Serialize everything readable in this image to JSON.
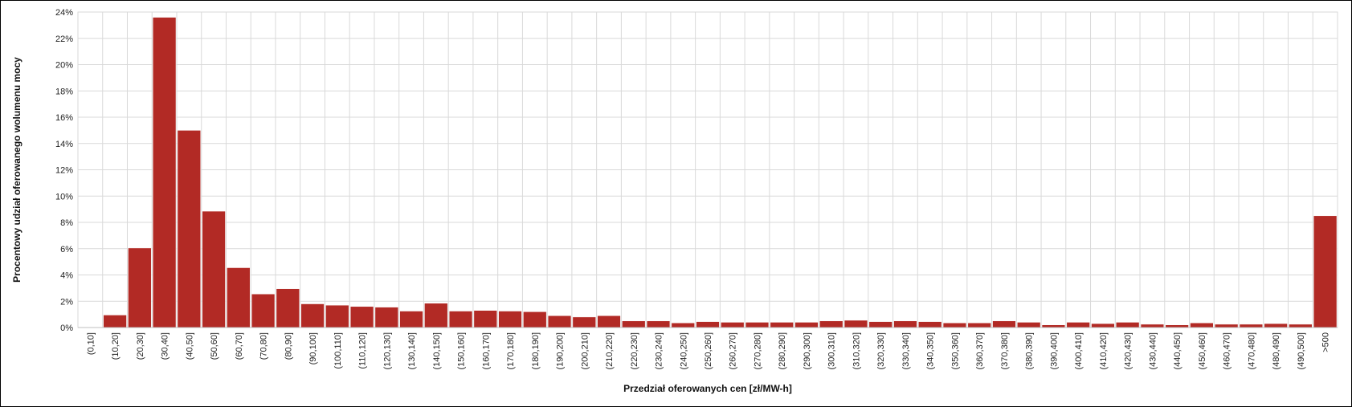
{
  "chart_data": {
    "type": "bar",
    "title": "",
    "xlabel": "Przedział oferowanych cen [zł/MW-h]",
    "ylabel": "Procentowy udział oferowanego wolumenu mocy",
    "ylim": [
      0,
      24
    ],
    "y_tick_values": [
      0,
      2,
      4,
      6,
      8,
      10,
      12,
      14,
      16,
      18,
      20,
      22,
      24
    ],
    "y_tick_labels": [
      "0%",
      "2%",
      "4%",
      "6%",
      "8%",
      "10%",
      "12%",
      "14%",
      "16%",
      "18%",
      "20%",
      "22%",
      "24%"
    ],
    "grid": true,
    "legend": "none",
    "bar_color": "#b22a25",
    "categories": [
      "(0,10]",
      "(10,20]",
      "(20,30]",
      "(30,40]",
      "(40,50]",
      "(50,60]",
      "(60,70]",
      "(70,80]",
      "(80,90]",
      "(90,100]",
      "(100,110]",
      "(110,120]",
      "(120,130]",
      "(130,140]",
      "(140,150]",
      "(150,160]",
      "(160,170]",
      "(170,180]",
      "(180,190]",
      "(190,200]",
      "(200,210]",
      "(210,220]",
      "(220,230]",
      "(230,240]",
      "(240,250]",
      "(250,260]",
      "(260,270]",
      "(270,280]",
      "(280,290]",
      "(290,300]",
      "(300,310]",
      "(310,320]",
      "(320,330]",
      "(330,340]",
      "(340,350]",
      "(350,360]",
      "(360,370]",
      "(370,380]",
      "(380,390]",
      "(390,400]",
      "(400,410]",
      "(410,420]",
      "(420,430]",
      "(430,440]",
      "(440,450]",
      "(450,460]",
      "(460,470]",
      "(470,480]",
      "(480,490]",
      "(490,500]",
      ">500"
    ],
    "values": [
      0,
      0.95,
      6.05,
      23.6,
      15.0,
      8.85,
      4.55,
      2.55,
      2.95,
      1.8,
      1.7,
      1.6,
      1.55,
      1.25,
      1.85,
      1.25,
      1.3,
      1.25,
      1.2,
      0.9,
      0.8,
      0.9,
      0.5,
      0.5,
      0.35,
      0.45,
      0.4,
      0.4,
      0.4,
      0.4,
      0.5,
      0.55,
      0.45,
      0.5,
      0.45,
      0.35,
      0.35,
      0.5,
      0.4,
      0.2,
      0.4,
      0.3,
      0.4,
      0.25,
      0.2,
      0.35,
      0.25,
      0.25,
      0.3,
      0.25,
      8.5
    ]
  }
}
